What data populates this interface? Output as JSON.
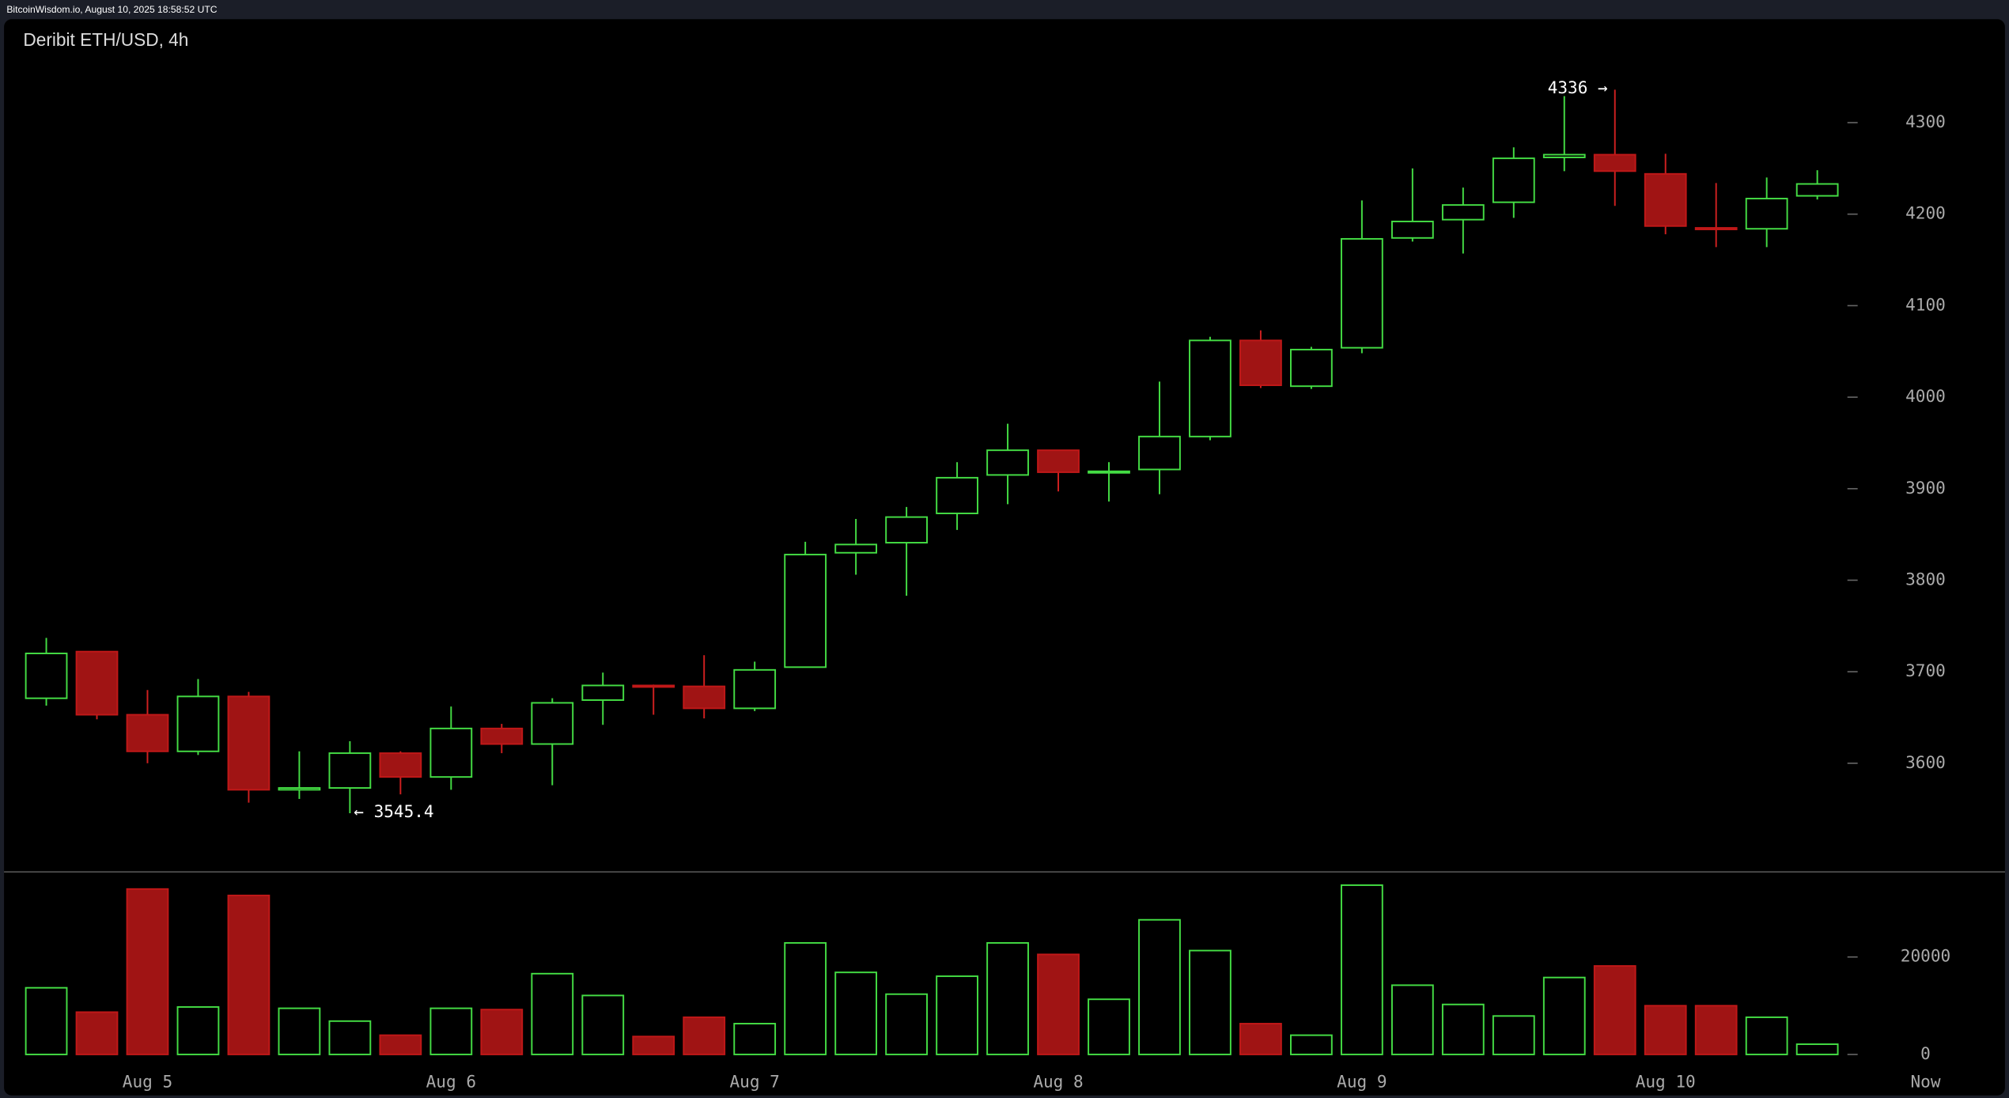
{
  "header": {
    "text": "BitcoinWisdom.io, August 10, 2025 18:58:52 UTC"
  },
  "chart_data": [
    {
      "type": "candlestick",
      "title": "Deribit ETH/USD, 4h",
      "categories": [
        null,
        null,
        "Aug 5",
        null,
        null,
        null,
        null,
        null,
        "Aug 6",
        null,
        null,
        null,
        null,
        null,
        "Aug 7",
        null,
        null,
        null,
        null,
        null,
        "Aug 8",
        null,
        null,
        null,
        null,
        null,
        "Aug 9",
        null,
        null,
        null,
        null,
        null,
        "Aug 10",
        null,
        null,
        null
      ],
      "open": [
        3671,
        3722,
        3653,
        3613,
        3673,
        3571,
        3573,
        3611,
        3585,
        3638,
        3621,
        3669,
        3685,
        3684,
        3660,
        3705,
        3830,
        3841,
        3873,
        3915,
        3942,
        3918,
        3921,
        3957,
        4062,
        4012,
        4054,
        4174,
        4194,
        4213,
        4262,
        4265,
        4244,
        4185,
        4184,
        4220
      ],
      "high": [
        3737,
        3722,
        3680,
        3692,
        3678,
        3613,
        3624,
        3613,
        3662,
        3643,
        3671,
        3699,
        3686,
        3718,
        3711,
        3842,
        3867,
        3880,
        3929,
        3971,
        3942,
        3929,
        4017,
        4066,
        4073,
        4055,
        4215,
        4250,
        4229,
        4273,
        4329,
        4336,
        4266,
        4234,
        4240,
        4248
      ],
      "low": [
        3663,
        3648,
        3600,
        3609,
        3557,
        3561,
        3545.4,
        3566,
        3571,
        3611,
        3576,
        3642,
        3653,
        3649,
        3657,
        3705,
        3806,
        3783,
        3855,
        3883,
        3897,
        3886,
        3894,
        3953,
        4010,
        4009,
        4048,
        4170,
        4157,
        4196,
        4247,
        4209,
        4178,
        4164,
        4164,
        4216
      ],
      "close": [
        3720,
        3653,
        3613,
        3673,
        3571,
        3573,
        3611,
        3585,
        3638,
        3621,
        3666,
        3685,
        3684,
        3660,
        3702,
        3828,
        3839,
        3869,
        3912,
        3942,
        3918,
        3919,
        3957,
        4062,
        4013,
        4052,
        4173,
        4192,
        4210,
        4261,
        4265,
        4247,
        4187,
        4184,
        4217,
        4233
      ],
      "up_color": "#44dd44",
      "down_color": "#a01414",
      "ylim": [
        3482,
        4413
      ],
      "yticks": [
        3600,
        3700,
        3800,
        3900,
        4000,
        4100,
        4200,
        4300
      ],
      "high_label": "4336 →",
      "low_label": "← 3545.4",
      "now_label": "Now"
    },
    {
      "type": "volume",
      "values": [
        13680,
        8680,
        33950,
        9740,
        32630,
        9470,
        6840,
        3950,
        9470,
        9210,
        16580,
        12100,
        3680,
        7630,
        6320,
        22890,
        16840,
        12370,
        16050,
        22890,
        20530,
        11320,
        27630,
        21320,
        6320,
        3950,
        34740,
        14210,
        10260,
        7890,
        15790,
        18160,
        10000,
        10000,
        7630,
        2100
      ],
      "ylim": [
        0,
        37600
      ],
      "yticks": [
        0,
        20000
      ]
    }
  ]
}
